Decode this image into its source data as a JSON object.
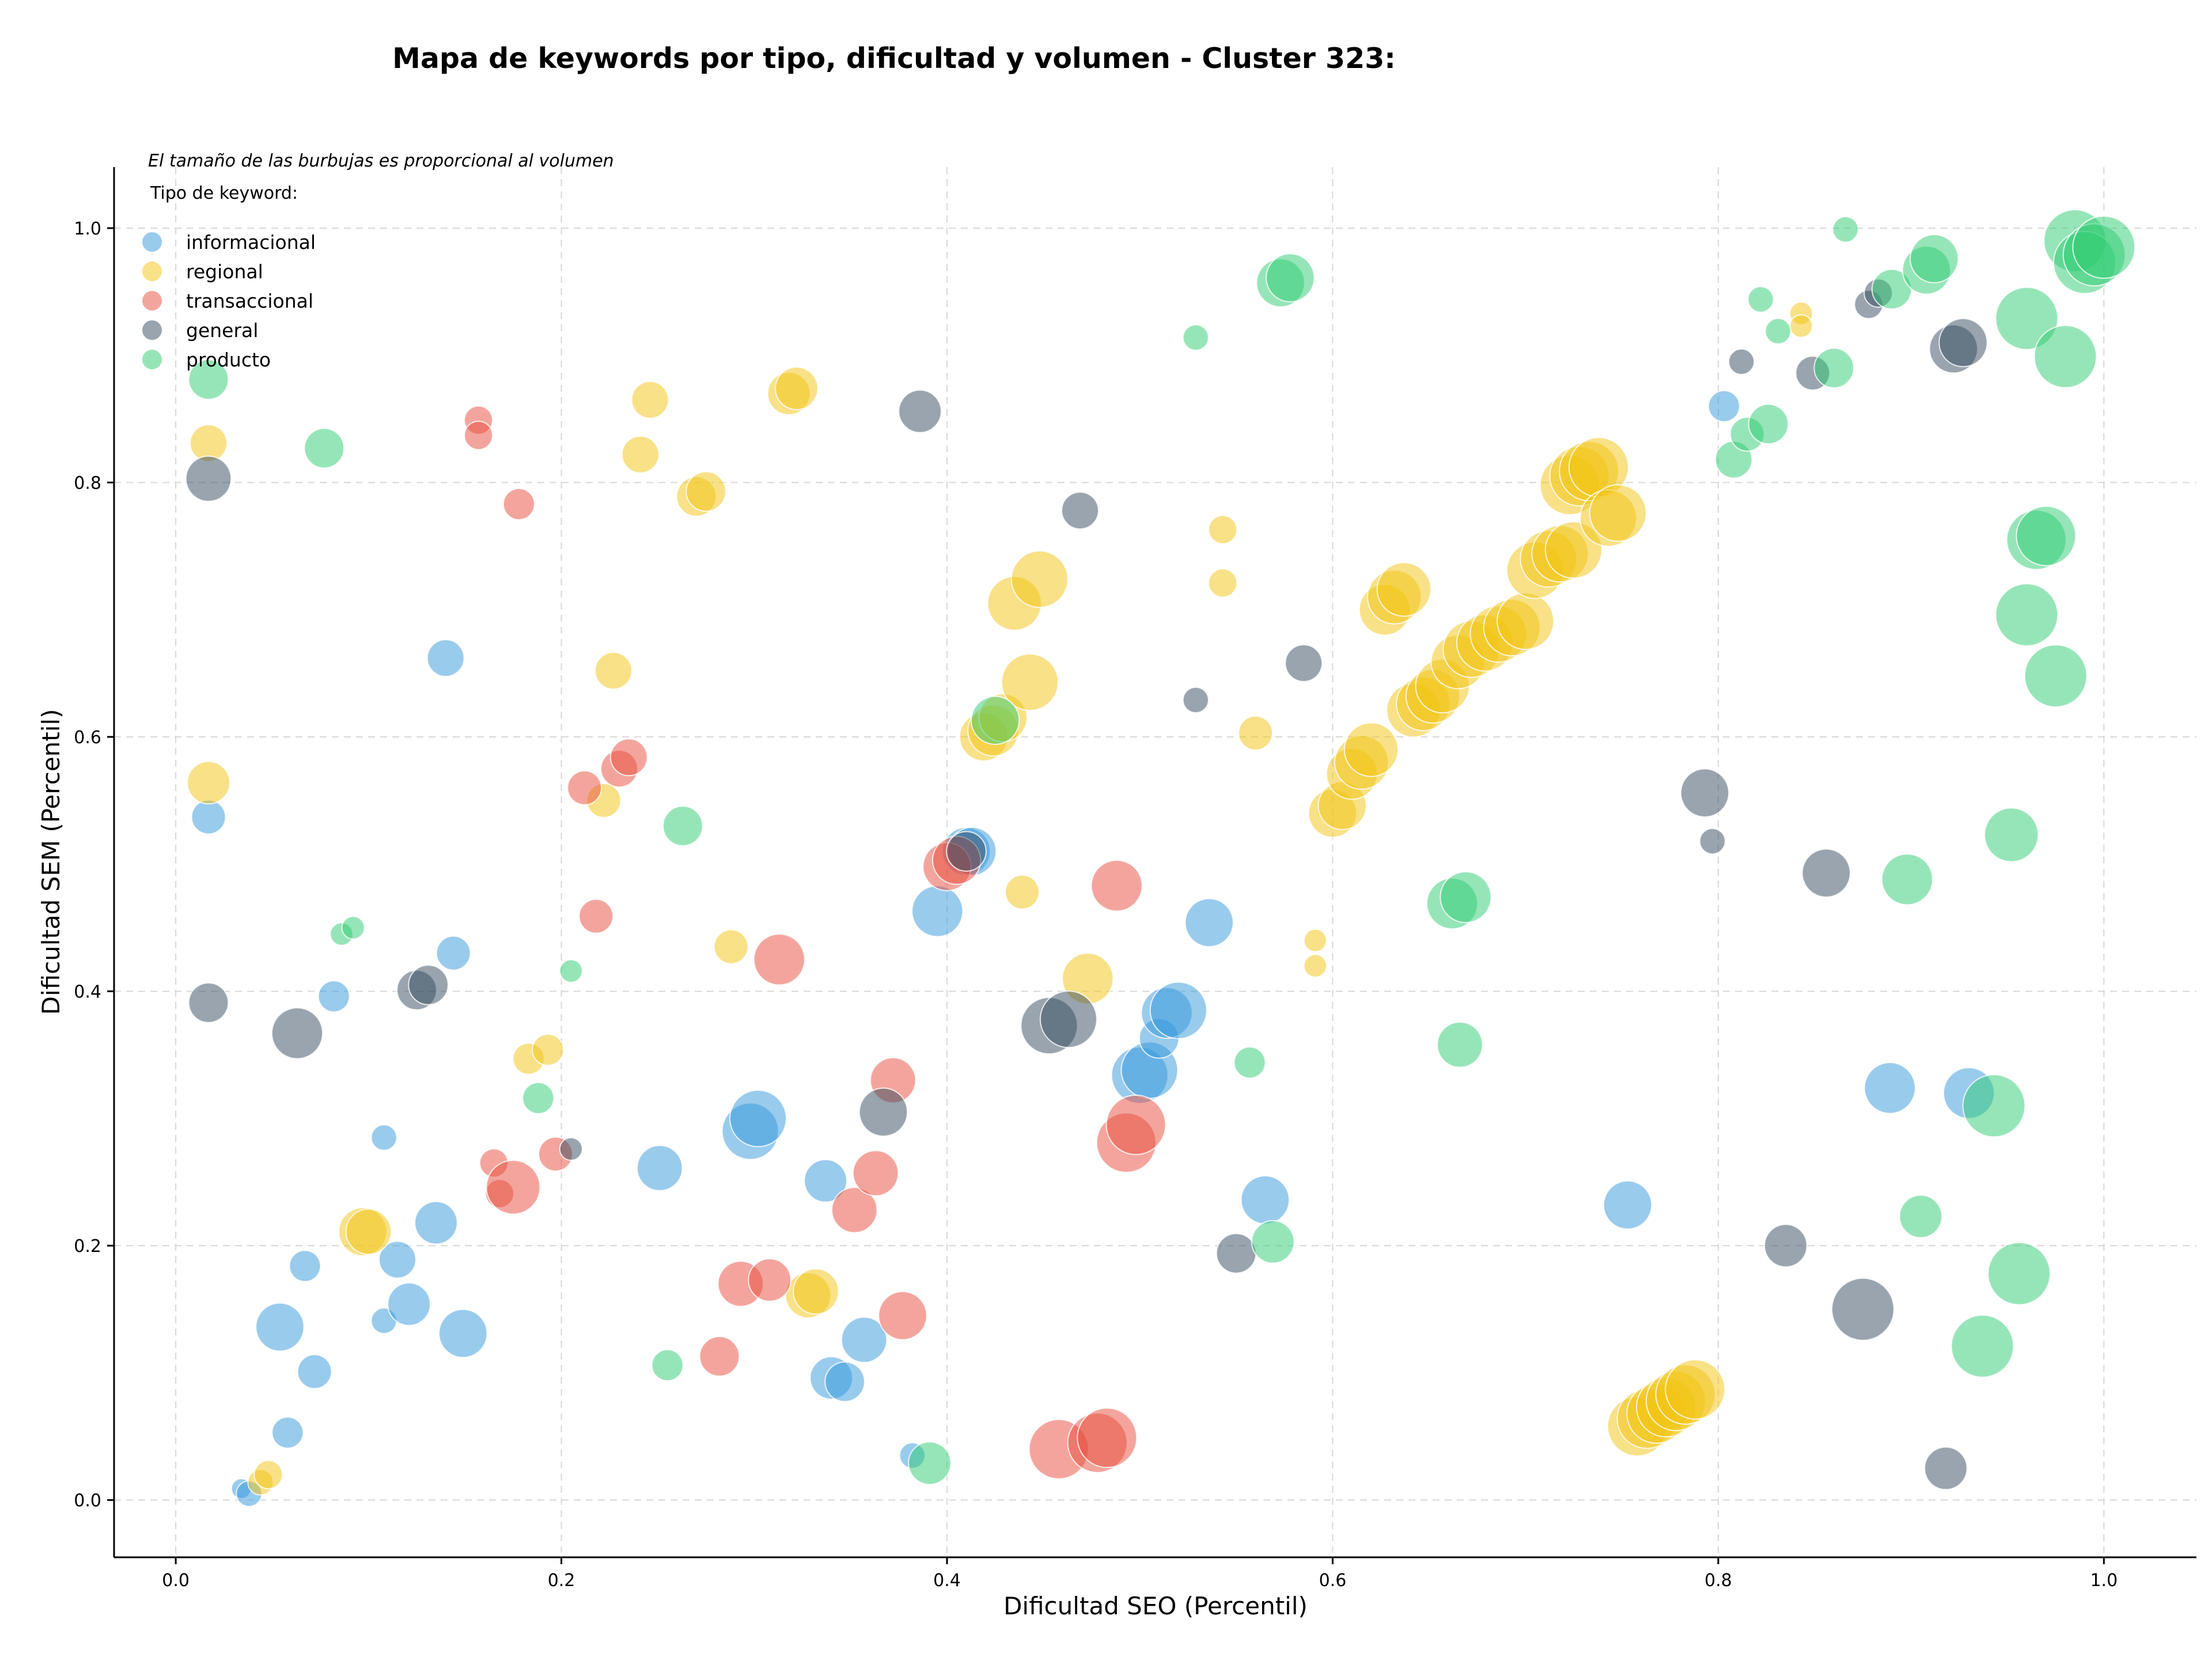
{
  "chart_data": {
    "type": "scatter",
    "title": "Mapa de keywords por tipo, dificultad y volumen - Cluster 323:",
    "xlabel": "Dificultad SEO (Percentil)",
    "ylabel": "Dificultad SEM (Percentil)",
    "xlim": [
      -0.032,
      1.048
    ],
    "ylim": [
      -0.045,
      1.048
    ],
    "xticks": [
      "0.0",
      "0.2",
      "0.4",
      "0.6",
      "0.8",
      "1.0"
    ],
    "yticks": [
      "0.0",
      "0.2",
      "0.4",
      "0.6",
      "0.8",
      "1.0"
    ],
    "grid": true,
    "legend_position": "top-left",
    "legend_note": "El tamaño de las burbujas es proporcional al volumen",
    "legend_title": "Tipo de keyword:",
    "series": [
      {
        "name": "informacional",
        "color": "#3498db",
        "points": [
          [
            0.017,
            0.537,
            12
          ],
          [
            0.034,
            0.009,
            7
          ],
          [
            0.038,
            0.005,
            9
          ],
          [
            0.054,
            0.136,
            17
          ],
          [
            0.058,
            0.053,
            11
          ],
          [
            0.067,
            0.184,
            11
          ],
          [
            0.072,
            0.101,
            12
          ],
          [
            0.082,
            0.396,
            11
          ],
          [
            0.108,
            0.285,
            9
          ],
          [
            0.108,
            0.141,
            9
          ],
          [
            0.115,
            0.189,
            13
          ],
          [
            0.121,
            0.154,
            15
          ],
          [
            0.135,
            0.218,
            15
          ],
          [
            0.14,
            0.662,
            13
          ],
          [
            0.144,
            0.43,
            12
          ],
          [
            0.149,
            0.131,
            17
          ],
          [
            0.251,
            0.261,
            16
          ],
          [
            0.298,
            0.29,
            20
          ],
          [
            0.302,
            0.3,
            20
          ],
          [
            0.337,
            0.251,
            15
          ],
          [
            0.34,
            0.096,
            15
          ],
          [
            0.347,
            0.093,
            14
          ],
          [
            0.357,
            0.126,
            16
          ],
          [
            0.382,
            0.035,
            9
          ],
          [
            0.395,
            0.463,
            18
          ],
          [
            0.41,
            0.51,
            17
          ],
          [
            0.413,
            0.51,
            17
          ],
          [
            0.5,
            0.334,
            20
          ],
          [
            0.505,
            0.338,
            20
          ],
          [
            0.51,
            0.363,
            14
          ],
          [
            0.514,
            0.383,
            18
          ],
          [
            0.52,
            0.385,
            20
          ],
          [
            0.536,
            0.454,
            17
          ],
          [
            0.565,
            0.236,
            17
          ],
          [
            0.753,
            0.232,
            17
          ],
          [
            0.803,
            0.86,
            11
          ],
          [
            0.889,
            0.324,
            18
          ],
          [
            0.93,
            0.32,
            18
          ]
        ]
      },
      {
        "name": "regional",
        "color": "#f1c40f",
        "points": [
          [
            0.017,
            0.564,
            15
          ],
          [
            0.017,
            0.831,
            13
          ],
          [
            0.044,
            0.014,
            9
          ],
          [
            0.048,
            0.02,
            10
          ],
          [
            0.097,
            0.211,
            17
          ],
          [
            0.1,
            0.211,
            16
          ],
          [
            0.183,
            0.347,
            11
          ],
          [
            0.193,
            0.354,
            11
          ],
          [
            0.222,
            0.55,
            12
          ],
          [
            0.227,
            0.652,
            13
          ],
          [
            0.241,
            0.822,
            13
          ],
          [
            0.246,
            0.865,
            13
          ],
          [
            0.27,
            0.789,
            14
          ],
          [
            0.275,
            0.793,
            14
          ],
          [
            0.288,
            0.435,
            12
          ],
          [
            0.318,
            0.87,
            15
          ],
          [
            0.322,
            0.874,
            15
          ],
          [
            0.328,
            0.161,
            16
          ],
          [
            0.332,
            0.164,
            16
          ],
          [
            0.419,
            0.6,
            17
          ],
          [
            0.424,
            0.605,
            18
          ],
          [
            0.429,
            0.615,
            17
          ],
          [
            0.435,
            0.705,
            19
          ],
          [
            0.439,
            0.478,
            12
          ],
          [
            0.443,
            0.643,
            20
          ],
          [
            0.448,
            0.724,
            20
          ],
          [
            0.473,
            0.41,
            18
          ],
          [
            0.543,
            0.763,
            10
          ],
          [
            0.543,
            0.721,
            10
          ],
          [
            0.56,
            0.603,
            12
          ],
          [
            0.591,
            0.44,
            8
          ],
          [
            0.591,
            0.42,
            8
          ],
          [
            0.6,
            0.54,
            17
          ],
          [
            0.605,
            0.546,
            17
          ],
          [
            0.61,
            0.571,
            18
          ],
          [
            0.615,
            0.58,
            19
          ],
          [
            0.62,
            0.59,
            19
          ],
          [
            0.627,
            0.7,
            18
          ],
          [
            0.632,
            0.71,
            19
          ],
          [
            0.637,
            0.716,
            19
          ],
          [
            0.642,
            0.621,
            19
          ],
          [
            0.647,
            0.626,
            19
          ],
          [
            0.652,
            0.632,
            19
          ],
          [
            0.657,
            0.64,
            19
          ],
          [
            0.665,
            0.659,
            19
          ],
          [
            0.672,
            0.669,
            20
          ],
          [
            0.679,
            0.674,
            20
          ],
          [
            0.686,
            0.681,
            20
          ],
          [
            0.693,
            0.686,
            20
          ],
          [
            0.7,
            0.691,
            20
          ],
          [
            0.705,
            0.731,
            20
          ],
          [
            0.712,
            0.74,
            20
          ],
          [
            0.718,
            0.744,
            20
          ],
          [
            0.725,
            0.747,
            20
          ],
          [
            0.723,
            0.798,
            21
          ],
          [
            0.728,
            0.805,
            21
          ],
          [
            0.733,
            0.809,
            21
          ],
          [
            0.738,
            0.812,
            21
          ],
          [
            0.743,
            0.772,
            20
          ],
          [
            0.748,
            0.776,
            20
          ],
          [
            0.758,
            0.058,
            21
          ],
          [
            0.763,
            0.064,
            21
          ],
          [
            0.768,
            0.068,
            21
          ],
          [
            0.773,
            0.073,
            21
          ],
          [
            0.778,
            0.078,
            21
          ],
          [
            0.783,
            0.083,
            21
          ],
          [
            0.788,
            0.087,
            21
          ],
          [
            0.843,
            0.933,
            8
          ],
          [
            0.843,
            0.923,
            8
          ]
        ]
      },
      {
        "name": "transaccional",
        "color": "#e74c3c",
        "points": [
          [
            0.157,
            0.849,
            10
          ],
          [
            0.157,
            0.837,
            10
          ],
          [
            0.165,
            0.265,
            10
          ],
          [
            0.168,
            0.241,
            10
          ],
          [
            0.175,
            0.246,
            19
          ],
          [
            0.178,
            0.783,
            11
          ],
          [
            0.197,
            0.272,
            12
          ],
          [
            0.212,
            0.56,
            12
          ],
          [
            0.218,
            0.459,
            12
          ],
          [
            0.23,
            0.575,
            13
          ],
          [
            0.235,
            0.584,
            13
          ],
          [
            0.282,
            0.113,
            14
          ],
          [
            0.293,
            0.17,
            16
          ],
          [
            0.308,
            0.173,
            15
          ],
          [
            0.313,
            0.425,
            18
          ],
          [
            0.352,
            0.228,
            16
          ],
          [
            0.363,
            0.257,
            16
          ],
          [
            0.372,
            0.33,
            16
          ],
          [
            0.377,
            0.145,
            17
          ],
          [
            0.4,
            0.498,
            17
          ],
          [
            0.405,
            0.503,
            17
          ],
          [
            0.458,
            0.04,
            21
          ],
          [
            0.478,
            0.045,
            21
          ],
          [
            0.483,
            0.049,
            21
          ],
          [
            0.488,
            0.483,
            18
          ],
          [
            0.493,
            0.281,
            21
          ],
          [
            0.498,
            0.295,
            21
          ]
        ]
      },
      {
        "name": "general",
        "color": "#34495e",
        "points": [
          [
            0.017,
            0.803,
            16
          ],
          [
            0.017,
            0.391,
            14
          ],
          [
            0.063,
            0.367,
            18
          ],
          [
            0.125,
            0.401,
            14
          ],
          [
            0.131,
            0.405,
            14
          ],
          [
            0.205,
            0.276,
            8
          ],
          [
            0.367,
            0.305,
            17
          ],
          [
            0.386,
            0.856,
            15
          ],
          [
            0.41,
            0.51,
            14
          ],
          [
            0.453,
            0.373,
            20
          ],
          [
            0.463,
            0.378,
            20
          ],
          [
            0.469,
            0.778,
            13
          ],
          [
            0.529,
            0.629,
            9
          ],
          [
            0.55,
            0.194,
            14
          ],
          [
            0.585,
            0.658,
            13
          ],
          [
            0.793,
            0.556,
            17
          ],
          [
            0.797,
            0.518,
            9
          ],
          [
            0.812,
            0.895,
            9
          ],
          [
            0.835,
            0.2,
            15
          ],
          [
            0.849,
            0.886,
            12
          ],
          [
            0.856,
            0.493,
            17
          ],
          [
            0.875,
            0.15,
            22
          ],
          [
            0.878,
            0.94,
            10
          ],
          [
            0.883,
            0.949,
            10
          ],
          [
            0.918,
            0.025,
            15
          ],
          [
            0.922,
            0.905,
            17
          ],
          [
            0.927,
            0.91,
            17
          ]
        ]
      },
      {
        "name": "producto",
        "color": "#2ecc71",
        "points": [
          [
            0.017,
            0.881,
            14
          ],
          [
            0.077,
            0.827,
            14
          ],
          [
            0.086,
            0.445,
            8
          ],
          [
            0.092,
            0.45,
            8
          ],
          [
            0.188,
            0.316,
            11
          ],
          [
            0.205,
            0.416,
            8
          ],
          [
            0.255,
            0.106,
            11
          ],
          [
            0.263,
            0.53,
            14
          ],
          [
            0.391,
            0.029,
            15
          ],
          [
            0.425,
            0.613,
            17
          ],
          [
            0.529,
            0.914,
            9
          ],
          [
            0.557,
            0.344,
            11
          ],
          [
            0.569,
            0.203,
            15
          ],
          [
            0.573,
            0.957,
            17
          ],
          [
            0.578,
            0.961,
            17
          ],
          [
            0.662,
            0.469,
            18
          ],
          [
            0.669,
            0.474,
            18
          ],
          [
            0.666,
            0.358,
            16
          ],
          [
            0.808,
            0.818,
            13
          ],
          [
            0.815,
            0.838,
            12
          ],
          [
            0.822,
            0.944,
            9
          ],
          [
            0.826,
            0.846,
            14
          ],
          [
            0.831,
            0.919,
            9
          ],
          [
            0.86,
            0.89,
            14
          ],
          [
            0.866,
            0.999,
            9
          ],
          [
            0.89,
            0.952,
            14
          ],
          [
            0.898,
            0.488,
            18
          ],
          [
            0.905,
            0.223,
            15
          ],
          [
            0.908,
            0.967,
            17
          ],
          [
            0.912,
            0.976,
            17
          ],
          [
            0.937,
            0.121,
            22
          ],
          [
            0.943,
            0.31,
            22
          ],
          [
            0.952,
            0.523,
            19
          ],
          [
            0.956,
            0.178,
            22
          ],
          [
            0.96,
            0.929,
            22
          ],
          [
            0.96,
            0.696,
            22
          ],
          [
            0.965,
            0.755,
            21
          ],
          [
            0.97,
            0.758,
            21
          ],
          [
            0.975,
            0.648,
            22
          ],
          [
            0.98,
            0.899,
            22
          ],
          [
            0.985,
            0.99,
            22
          ],
          [
            0.99,
            0.973,
            22
          ],
          [
            0.995,
            0.979,
            22
          ],
          [
            1.0,
            0.985,
            22
          ]
        ]
      }
    ]
  }
}
